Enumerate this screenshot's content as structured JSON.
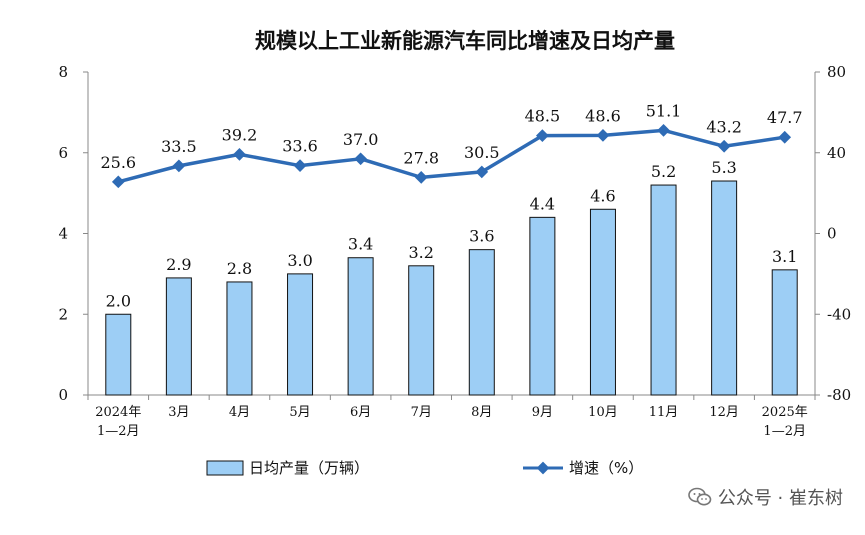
{
  "chart_data": {
    "type": "bar+line",
    "title": "规模以上工业新能源汽车同比增速及日均产量",
    "categories": [
      [
        "2024年",
        "1—2月"
      ],
      [
        "3月"
      ],
      [
        "4月"
      ],
      [
        "5月"
      ],
      [
        "6月"
      ],
      [
        "7月"
      ],
      [
        "8月"
      ],
      [
        "9月"
      ],
      [
        "10月"
      ],
      [
        "11月"
      ],
      [
        "12月"
      ],
      [
        "2025年",
        "1—2月"
      ]
    ],
    "left_axis": {
      "min": 0,
      "max": 8,
      "ticks": [
        "0",
        "2",
        "4",
        "6",
        "8"
      ]
    },
    "right_axis": {
      "min": -80,
      "max": 80,
      "ticks": [
        "-80",
        "-40",
        "0",
        "40",
        "80"
      ]
    },
    "series": [
      {
        "name": "日均产量（万辆）",
        "type": "bar",
        "axis": "left",
        "values": [
          2.0,
          2.9,
          2.8,
          3.0,
          3.4,
          3.2,
          3.6,
          4.4,
          4.6,
          5.2,
          5.3,
          3.1
        ],
        "labels": [
          "2.0",
          "2.9",
          "2.8",
          "3.0",
          "3.4",
          "3.2",
          "3.6",
          "4.4",
          "4.6",
          "5.2",
          "5.3",
          "3.1"
        ],
        "color": "#9dcef5",
        "border": "#111111"
      },
      {
        "name": "增速（%）",
        "type": "line",
        "axis": "right",
        "values": [
          25.6,
          33.5,
          39.2,
          33.6,
          37.0,
          27.8,
          30.5,
          48.5,
          48.6,
          51.1,
          43.2,
          47.7
        ],
        "labels": [
          "25.6",
          "33.5",
          "39.2",
          "33.6",
          "37.0",
          "27.8",
          "30.5",
          "48.5",
          "48.6",
          "51.1",
          "43.2",
          "47.7"
        ],
        "color": "#2e6bb5"
      }
    ],
    "legend": {
      "position": "bottom"
    }
  },
  "watermark": {
    "text": "公众号 · 崔东树"
  }
}
